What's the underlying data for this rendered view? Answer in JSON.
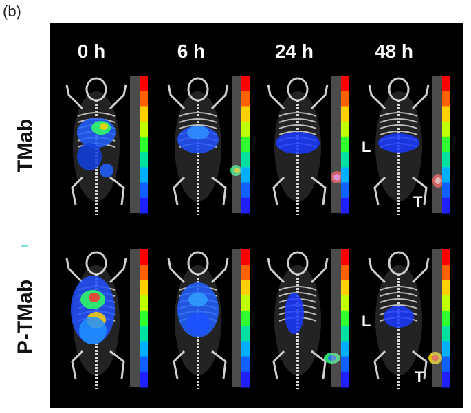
{
  "panel_label": "(b)",
  "time_points": [
    "0 h",
    "6 h",
    "24 h",
    "48 h"
  ],
  "rows": [
    "TMab",
    "P-TMab"
  ],
  "markers": {
    "liver": "L",
    "tumor": "T"
  },
  "colors": {
    "background": "#000000",
    "text": "#ffffff",
    "dash": "#7fe0e8"
  }
}
